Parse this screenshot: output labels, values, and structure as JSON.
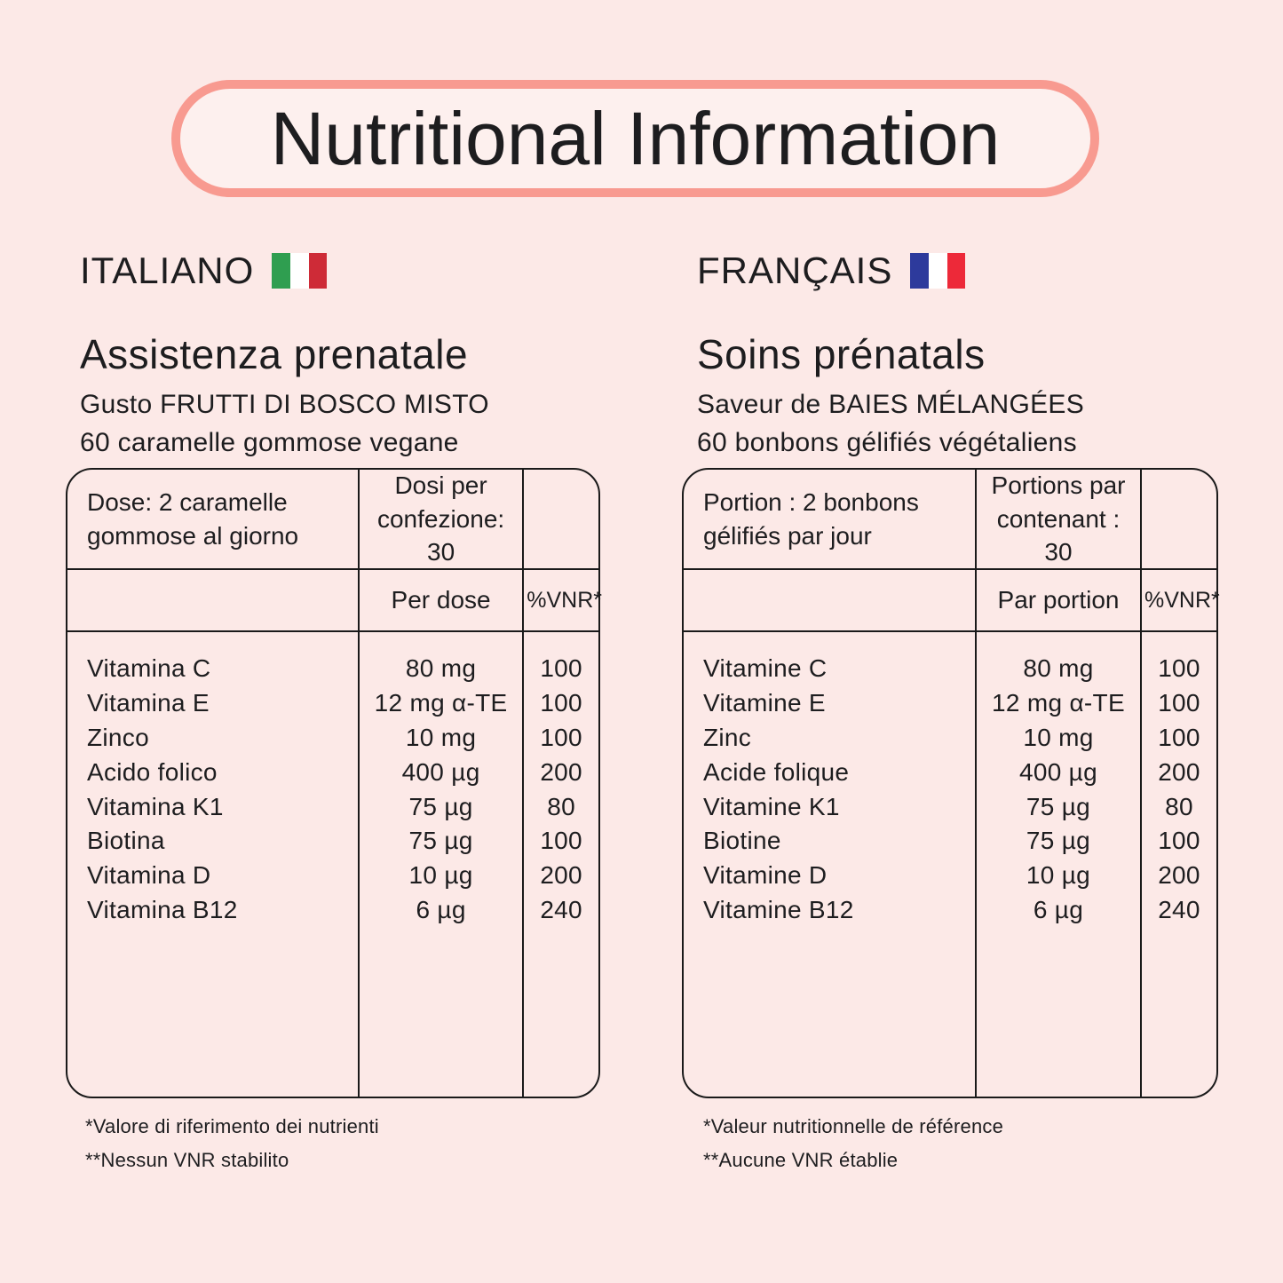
{
  "title": "Nutritional Information",
  "colors": {
    "background": "#fce9e7",
    "pill_fill": "#fdf0ee",
    "pill_border": "#f89a90",
    "text": "#1d1d1f",
    "table_border": "#1a1a1a"
  },
  "sections": {
    "italian": {
      "language": "ITALIANO",
      "flag_colors": [
        "#2f9e50",
        "#ffffff",
        "#ce2b37"
      ],
      "heading": "Assistenza prenatale",
      "flavor": "Gusto FRUTTI DI BOSCO MISTO",
      "count": "60 caramelle gommose vegane",
      "table": {
        "serving": "Dose: 2 caramelle gommose al giorno",
        "servings_per_pack": "Dosi per confezione: 30",
        "per_serving_label": "Per dose",
        "vnr_label": "%VNR*",
        "rows": [
          {
            "name": "Vitamina C",
            "amount": "80 mg",
            "vnr": "100"
          },
          {
            "name": "Vitamina E",
            "amount": "12 mg α-TE",
            "vnr": "100"
          },
          {
            "name": "Zinco",
            "amount": "10 mg",
            "vnr": "100"
          },
          {
            "name": "Acido folico",
            "amount": "400 µg",
            "vnr": "200"
          },
          {
            "name": "Vitamina K1",
            "amount": "75 µg",
            "vnr": "80"
          },
          {
            "name": "Biotina",
            "amount": "75 µg",
            "vnr": "100"
          },
          {
            "name": "Vitamina D",
            "amount": "10 µg",
            "vnr": "200"
          },
          {
            "name": "Vitamina B12",
            "amount": "6 µg",
            "vnr": "240"
          }
        ]
      },
      "footnotes": [
        "*Valore di riferimento dei nutrienti",
        "**Nessun VNR stabilito"
      ]
    },
    "french": {
      "language": "FRANÇAIS",
      "flag_colors": [
        "#2d3a9c",
        "#ffffff",
        "#ed2939"
      ],
      "heading": "Soins prénatals",
      "flavor": "Saveur de BAIES MÉLANGÉES",
      "count": "60 bonbons gélifiés végétaliens",
      "table": {
        "serving": "Portion :  2 bonbons gélifiés par jour",
        "servings_per_pack": "Portions par contenant : 30",
        "per_serving_label": "Par portion",
        "vnr_label": "%VNR*",
        "rows": [
          {
            "name": "Vitamine C",
            "amount": "80 mg",
            "vnr": "100"
          },
          {
            "name": "Vitamine E",
            "amount": "12 mg α-TE",
            "vnr": "100"
          },
          {
            "name": "Zinc",
            "amount": "10 mg",
            "vnr": "100"
          },
          {
            "name": "Acide folique",
            "amount": "400 µg",
            "vnr": "200"
          },
          {
            "name": "Vitamine K1",
            "amount": "75 µg",
            "vnr": "80"
          },
          {
            "name": "Biotine",
            "amount": "75 µg",
            "vnr": "100"
          },
          {
            "name": "Vitamine D",
            "amount": "10 µg",
            "vnr": "200"
          },
          {
            "name": "Vitamine B12",
            "amount": "6 µg",
            "vnr": "240"
          }
        ]
      },
      "footnotes": [
        "*Valeur nutritionnelle de référence",
        "**Aucune VNR établie"
      ]
    }
  }
}
